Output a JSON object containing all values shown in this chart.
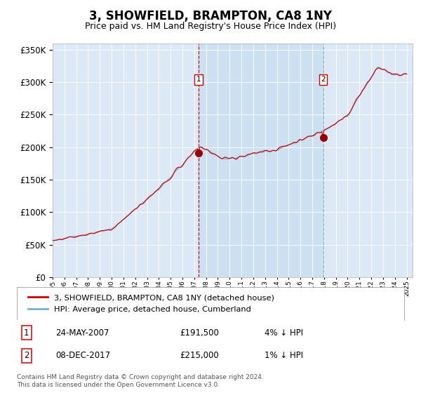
{
  "title": "3, SHOWFIELD, BRAMPTON, CA8 1NY",
  "subtitle": "Price paid vs. HM Land Registry's House Price Index (HPI)",
  "plot_bg_color": "#dce8f5",
  "fill_color": "#c8ddf0",
  "legend_line1": "3, SHOWFIELD, BRAMPTON, CA8 1NY (detached house)",
  "legend_line2": "HPI: Average price, detached house, Cumberland",
  "transaction1_date": "24-MAY-2007",
  "transaction1_price": "£191,500",
  "transaction1_hpi": "4% ↓ HPI",
  "transaction2_date": "08-DEC-2017",
  "transaction2_price": "£215,000",
  "transaction2_hpi": "1% ↓ HPI",
  "footer": "Contains HM Land Registry data © Crown copyright and database right 2024.\nThis data is licensed under the Open Government Licence v3.0.",
  "ylim_min": 0,
  "ylim_max": 360000,
  "transaction1_year": 2007.38,
  "transaction1_value": 191500,
  "transaction2_year": 2017.92,
  "transaction2_value": 215000,
  "red_line_color": "#cc0000",
  "blue_line_color": "#7aaccc",
  "vline1_color": "#cc0000",
  "vline2_color": "#7aaccc",
  "marker_color": "#990000",
  "start_year": 1995,
  "end_year": 2025
}
